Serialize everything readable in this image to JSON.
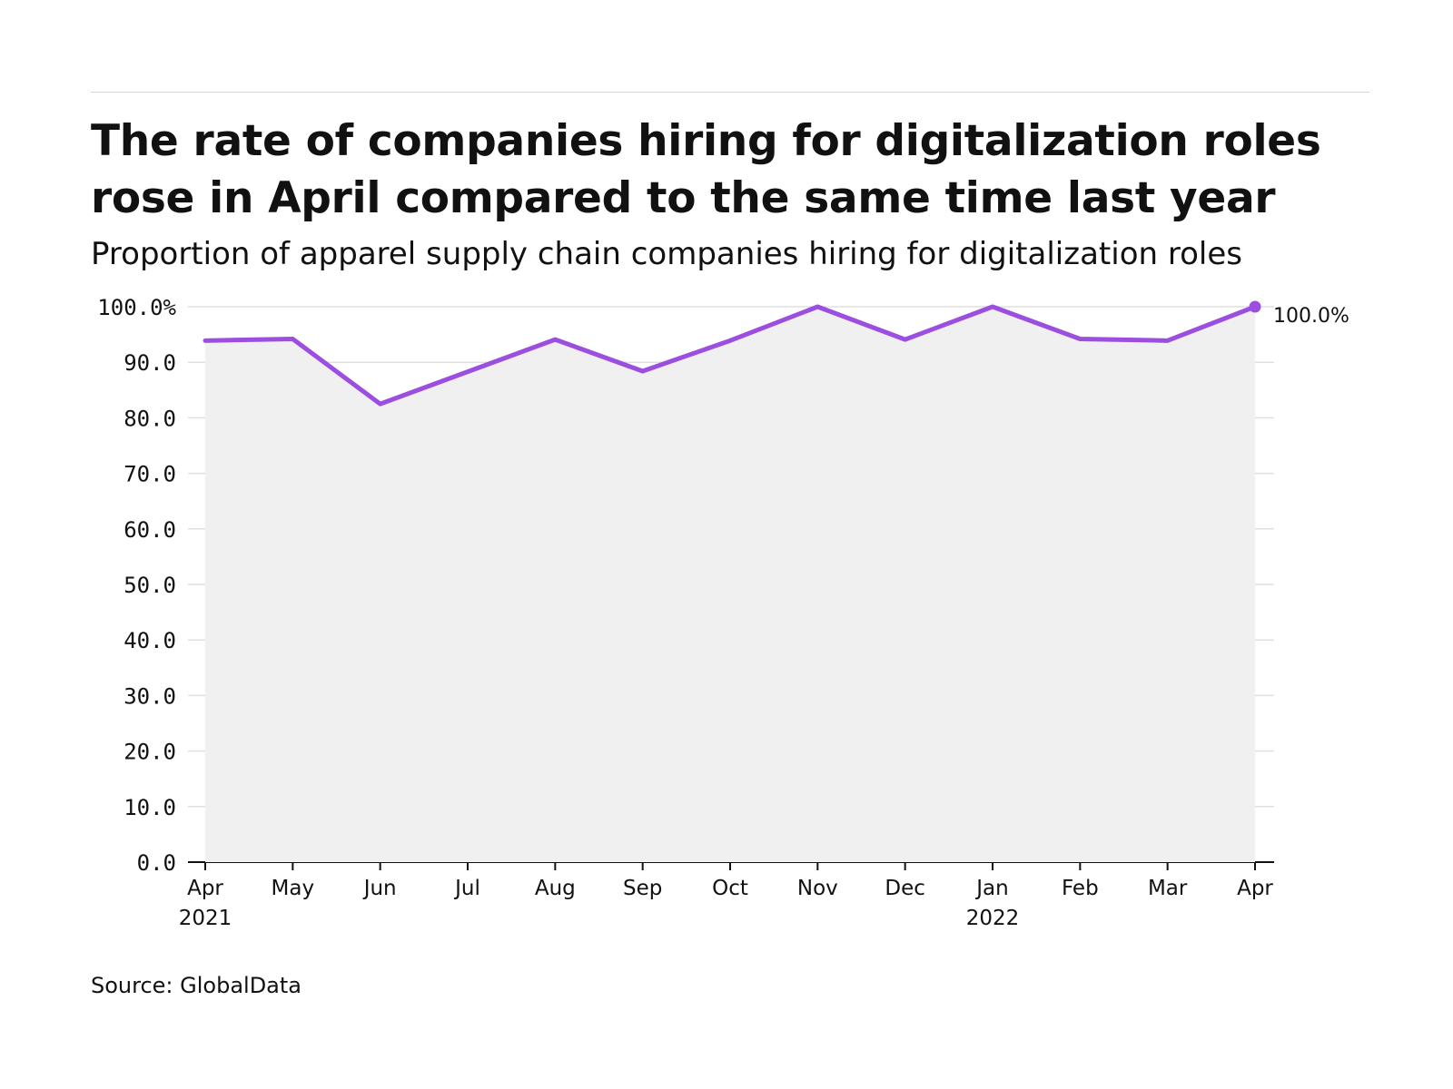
{
  "header": {
    "title": "The rate of companies hiring for digitalization roles rose in April compared to the same time last year",
    "subtitle": "Proportion of apparel supply chain companies hiring for digitalization roles"
  },
  "footer": {
    "source": "Source: GlobalData"
  },
  "chart_data": {
    "type": "area",
    "x": [
      "Apr 2021",
      "May 2021",
      "Jun 2021",
      "Jul 2021",
      "Aug 2021",
      "Sep 2021",
      "Oct 2021",
      "Nov 2021",
      "Dec 2021",
      "Jan 2022",
      "Feb 2022",
      "Mar 2022",
      "Apr 2022"
    ],
    "tick_labels": [
      [
        "Apr",
        "2021"
      ],
      [
        "May"
      ],
      [
        "Jun"
      ],
      [
        "Jul"
      ],
      [
        "Aug"
      ],
      [
        "Sep"
      ],
      [
        "Oct"
      ],
      [
        "Nov"
      ],
      [
        "Dec"
      ],
      [
        "Jan",
        "2022"
      ],
      [
        "Feb"
      ],
      [
        "Mar"
      ],
      [
        "Apr"
      ]
    ],
    "series": [
      {
        "values": [
          93.9,
          94.2,
          82.5,
          88.3,
          94.1,
          88.4,
          93.9,
          100.0,
          94.1,
          100.0,
          94.2,
          93.9,
          100.0
        ]
      }
    ],
    "y_ticks": [
      "0.0",
      "10.0",
      "20.0",
      "30.0",
      "40.0",
      "50.0",
      "60.0",
      "70.0",
      "80.0",
      "90.0",
      "100.0%"
    ],
    "ylim": [
      0,
      100
    ],
    "end_label": "100.0%",
    "grid": true,
    "colors": {
      "line": "#9b4ee0",
      "area": "#f0f0f0",
      "grid": "#e0e0e0",
      "axis": "#111111"
    }
  }
}
